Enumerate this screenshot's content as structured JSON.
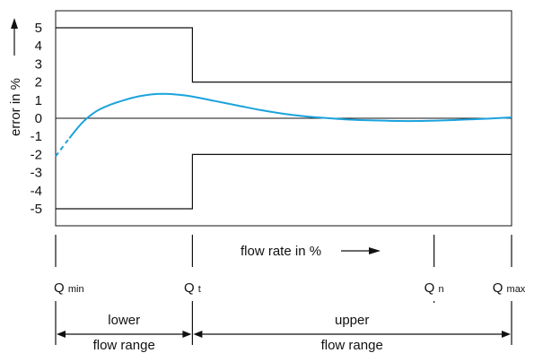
{
  "chart_data": {
    "type": "line",
    "title": "",
    "ylabel": "error in %",
    "xlabel": "flow rate in %",
    "ylim": [
      -6,
      6
    ],
    "y_ticks": [
      "5",
      "4",
      "3",
      "2",
      "1",
      "0",
      "-1",
      "-2",
      "-3",
      "-4",
      "-5"
    ],
    "y_tick_values": [
      5,
      4,
      3,
      2,
      1,
      0,
      -1,
      -2,
      -3,
      -4,
      -5
    ],
    "grid": false,
    "legend": "none",
    "x_markers": [
      {
        "main": "Q",
        "sub": "min",
        "position": 0
      },
      {
        "main": "Q",
        "sub": "t",
        "position": 0.3
      },
      {
        "main": "Q",
        "sub": "n",
        "position": 0.83
      },
      {
        "main": "Q",
        "sub": "max",
        "position": 1
      }
    ],
    "ranges": [
      {
        "line1": "lower",
        "line2": "flow range",
        "from": 0,
        "to": 0.3
      },
      {
        "line1": "upper",
        "line2": "flow range",
        "from": 0.3,
        "to": 1
      }
    ],
    "tolerance_limits": {
      "lower_range": {
        "upper": 5,
        "lower": -5
      },
      "upper_range": {
        "upper": 2,
        "lower": -2
      }
    },
    "series": [
      {
        "color": "#1aa3dc",
        "x": [
          0,
          0.03,
          0.06,
          0.09,
          0.12,
          0.15,
          0.18,
          0.21,
          0.24,
          0.27,
          0.3,
          0.35,
          0.4,
          0.45,
          0.5,
          0.55,
          0.6,
          0.65,
          0.7,
          0.75,
          0.8,
          0.85,
          0.9,
          0.95,
          1.0
        ],
        "values": [
          -2.1,
          -1.1,
          -0.2,
          0.4,
          0.75,
          1.0,
          1.2,
          1.32,
          1.35,
          1.3,
          1.2,
          0.95,
          0.7,
          0.45,
          0.25,
          0.1,
          0.0,
          -0.08,
          -0.12,
          -0.15,
          -0.15,
          -0.12,
          -0.07,
          -0.02,
          0.05
        ],
        "dashed_until": 0.03
      }
    ]
  }
}
